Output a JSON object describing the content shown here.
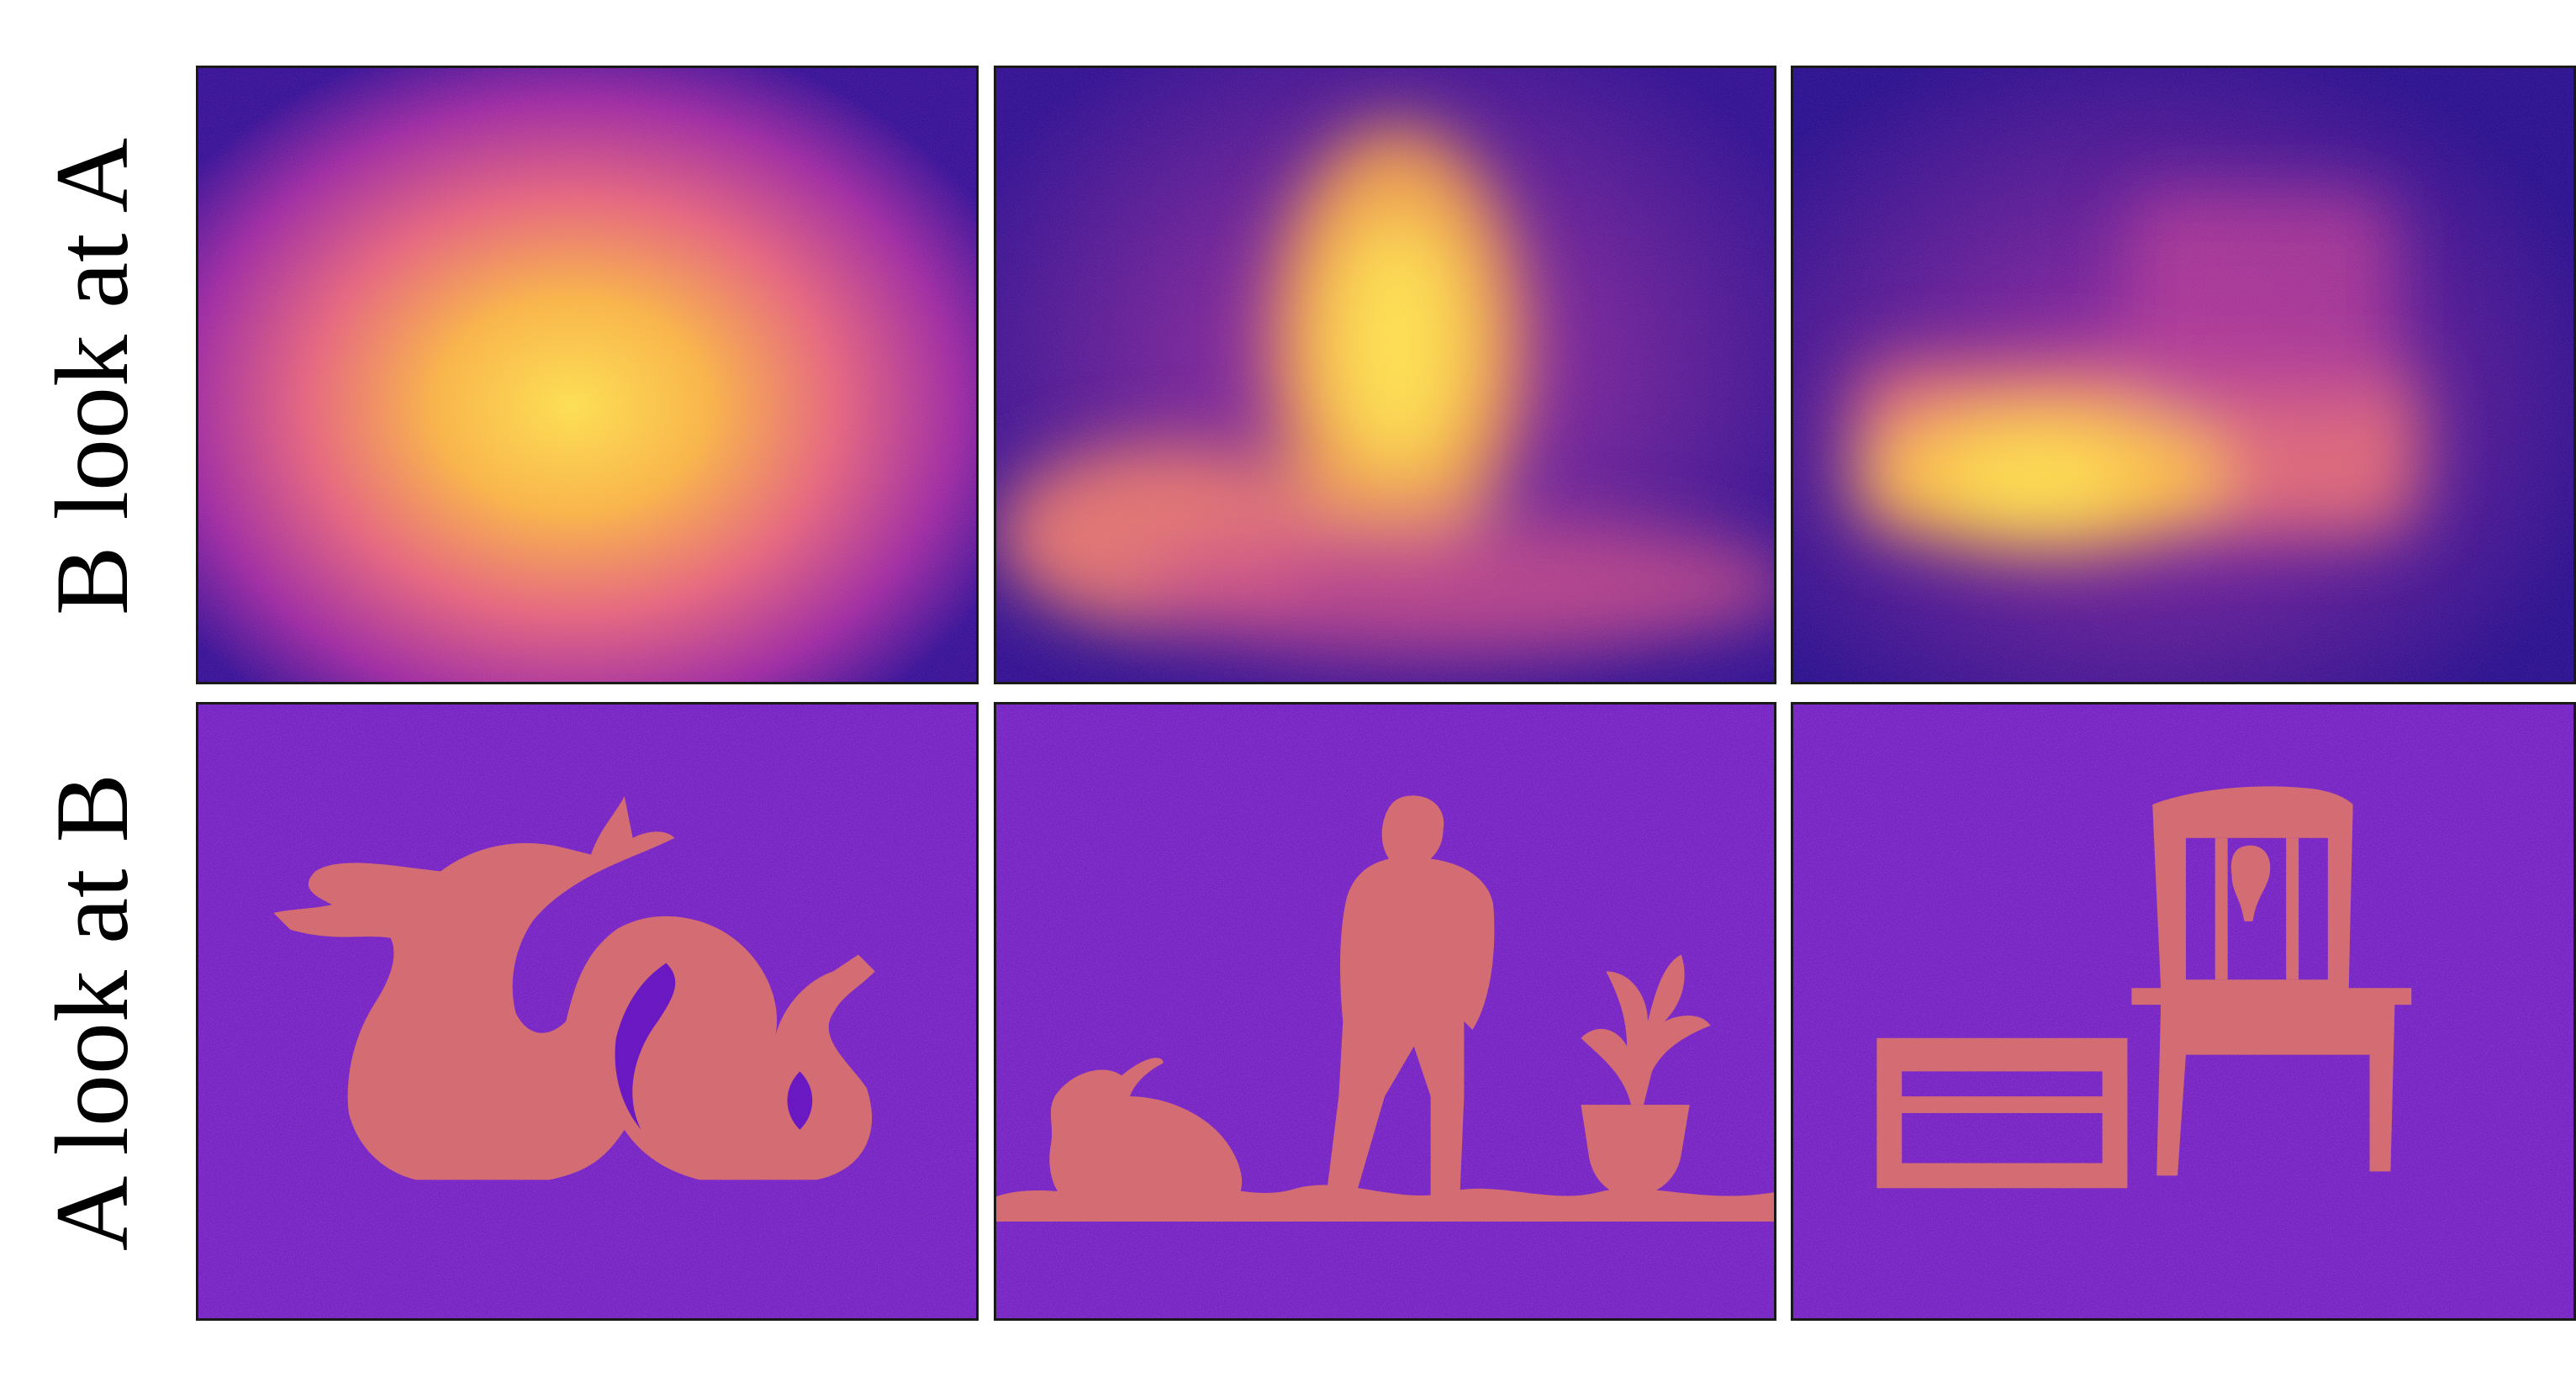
{
  "row_labels": {
    "top": "B look at A",
    "bottom": "A look at B"
  },
  "colormap": {
    "low": "#1d0b8a",
    "mid": "#8a1fa4",
    "high_mid": "#e4637a",
    "high": "#fde34a"
  },
  "panels": [
    {
      "row": "B look at A",
      "column": 1,
      "content": "diffuse glow"
    },
    {
      "row": "B look at A",
      "column": 2,
      "content": "diffuse glow"
    },
    {
      "row": "B look at A",
      "column": 3,
      "content": "diffuse glow"
    },
    {
      "row": "A look at B",
      "column": 1,
      "content": "dragon silhouette"
    },
    {
      "row": "A look at B",
      "column": 2,
      "content": "bunny, man and potted plant silhouettes"
    },
    {
      "row": "A look at B",
      "column": 3,
      "content": "chair and stool silhouettes"
    }
  ]
}
